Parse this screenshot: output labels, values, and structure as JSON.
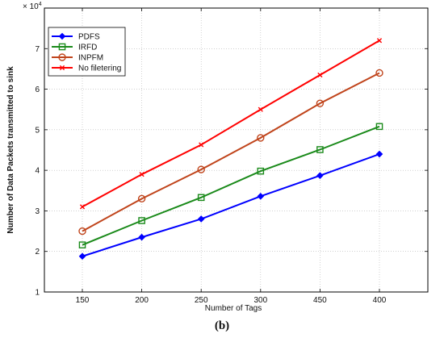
{
  "chart_data": {
    "type": "line",
    "title": "",
    "xlabel": "Number of Tags",
    "ylabel": "Number of Data Packets transmitted to sink",
    "y_multiplier": "× 10",
    "y_multiplier_exponent": "4",
    "categories": [
      "150",
      "200",
      "250",
      "300",
      "450",
      "400"
    ],
    "ylim": [
      1,
      8
    ],
    "yticks": [
      1,
      2,
      3,
      4,
      5,
      6,
      7
    ],
    "grid": "dotted",
    "legend_placement": "top-left",
    "series": [
      {
        "name": "PDFS",
        "color": "#0000ff",
        "marker": "diamond",
        "values": [
          1.88,
          2.35,
          2.8,
          3.36,
          3.87,
          4.4
        ]
      },
      {
        "name": "IRFD",
        "color": "#1a8a1a",
        "marker": "square",
        "values": [
          2.16,
          2.76,
          3.33,
          3.98,
          4.51,
          5.08
        ]
      },
      {
        "name": "INPFM",
        "color": "#c0441b",
        "marker": "circle",
        "values": [
          2.5,
          3.3,
          4.02,
          4.8,
          5.65,
          6.4
        ]
      },
      {
        "name": "No filetering",
        "color": "#ff0000",
        "marker": "x",
        "values": [
          3.1,
          3.9,
          4.63,
          5.5,
          6.35,
          7.2
        ]
      }
    ]
  },
  "caption": "(b)"
}
